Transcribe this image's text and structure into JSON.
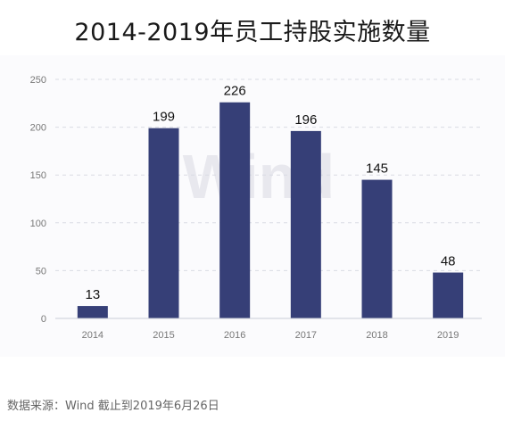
{
  "title": "2014-2019年员工持股实施数量",
  "source": "数据来源：Wind  截止到2019年6月26日",
  "watermark": "Wind",
  "chart_data": {
    "type": "bar",
    "title": "2014-2019年员工持股实施数量",
    "xlabel": "",
    "ylabel": "",
    "categories": [
      "2014",
      "2015",
      "2016",
      "2017",
      "2018",
      "2019"
    ],
    "values": [
      13,
      199,
      226,
      196,
      145,
      48
    ],
    "ylim": [
      0,
      250
    ],
    "yticks": [
      0,
      50,
      100,
      150,
      200,
      250
    ],
    "grid": true,
    "bar_color": "#363f77",
    "data_labels": true
  }
}
